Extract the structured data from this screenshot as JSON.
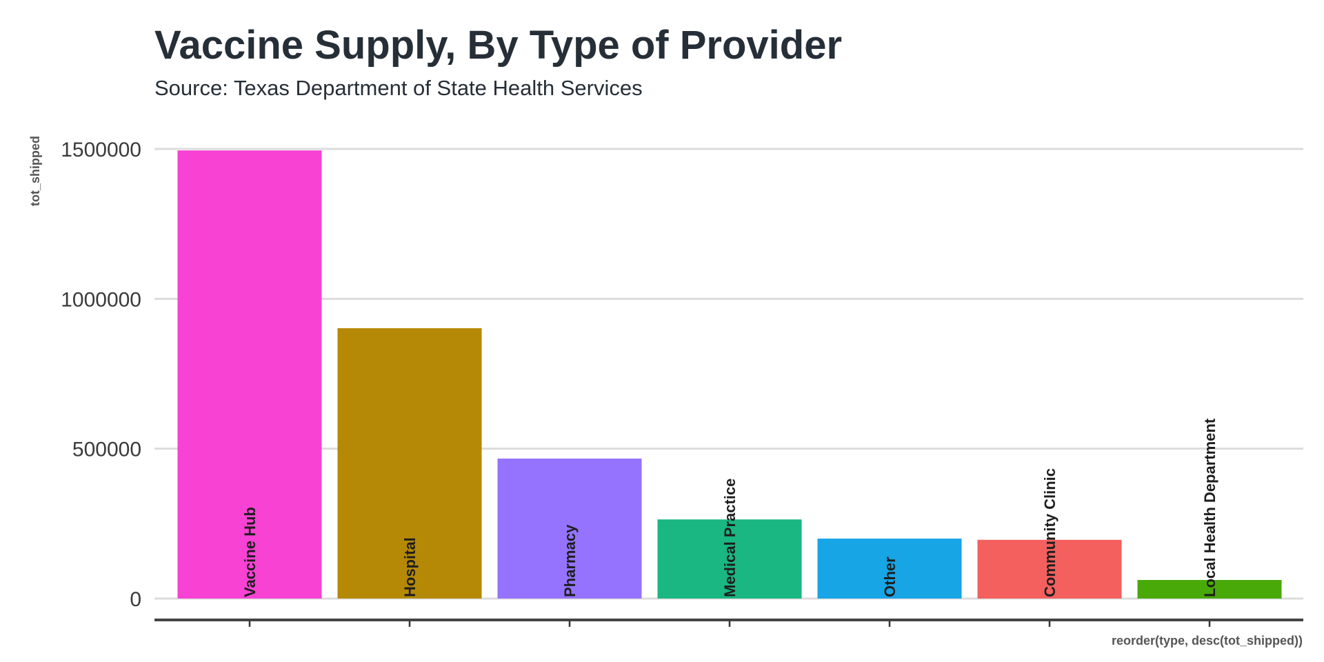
{
  "chart_data": {
    "type": "bar",
    "title": "Vaccine Supply, By Type of Provider",
    "subtitle": "Source: Texas Department of State Health Services",
    "xlabel": "reorder(type, desc(tot_shipped))",
    "ylabel": "tot_shipped",
    "ylim": [
      0,
      1500000
    ],
    "yticks": [
      0,
      500000,
      1000000,
      1500000
    ],
    "ytick_labels": [
      "0",
      "500000",
      "1000000",
      "1500000"
    ],
    "grid": "horizontal",
    "legend": "none",
    "categories": [
      "Vaccine Hub",
      "Hospital",
      "Pharmacy",
      "Medical Practice",
      "Other",
      "Community Clinic",
      "Local Health Department"
    ],
    "values": [
      1495000,
      902000,
      467000,
      264000,
      200000,
      196000,
      62000
    ],
    "colors": [
      "#f742d4",
      "#b58906",
      "#9573fe",
      "#1ab783",
      "#17a5e6",
      "#f3605e",
      "#49a909"
    ]
  }
}
